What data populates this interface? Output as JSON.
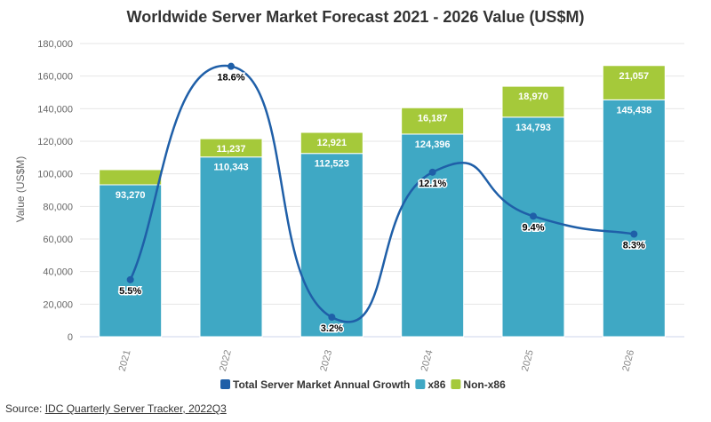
{
  "chart_data": {
    "type": "bar",
    "stacked": true,
    "title": "Worldwide Server Market Forecast 2021 - 2026 Value (US$M)",
    "xlabel": "",
    "ylabel": "Value (US$M)",
    "ylim": [
      0,
      180000
    ],
    "yticks": [
      0,
      20000,
      40000,
      60000,
      80000,
      100000,
      120000,
      140000,
      160000,
      180000
    ],
    "ytick_labels": [
      "0",
      "20,000",
      "40,000",
      "60,000",
      "80,000",
      "100,000",
      "120,000",
      "140,000",
      "160,000",
      "180,000"
    ],
    "grid": true,
    "legend_position": "bottom",
    "categories": [
      "2021",
      "2022",
      "2023",
      "2024",
      "2025",
      "2026"
    ],
    "series": [
      {
        "name": "x86",
        "kind": "bar",
        "color": "#3fa8c4",
        "values": [
          93270,
          110343,
          112523,
          124396,
          134793,
          145438
        ],
        "labels": [
          "93,270",
          "110,343",
          "112,523",
          "124,396",
          "134,793",
          "145,438"
        ]
      },
      {
        "name": "Non-x86",
        "kind": "bar",
        "color": "#a5c93a",
        "values": [
          9300,
          11237,
          12921,
          16187,
          18970,
          21057
        ],
        "labels": [
          "",
          "11,237",
          "12,921",
          "16,187",
          "18,970",
          "21,057"
        ]
      },
      {
        "name": "Total Server Market Annual Growth",
        "kind": "line",
        "smooth": true,
        "color": "#1f5fa8",
        "values": [
          5.5,
          18.6,
          3.2,
          12.1,
          9.4,
          8.3
        ],
        "labels": [
          "5.5%",
          "18.6%",
          "3.2%",
          "12.1%",
          "9.4%",
          "8.3%"
        ],
        "plot_y": [
          35000,
          166000,
          12000,
          101000,
          74000,
          63000
        ]
      }
    ]
  },
  "source": {
    "prefix": "Source: ",
    "link_text": "IDC Quarterly Server Tracker, 2022Q3"
  }
}
